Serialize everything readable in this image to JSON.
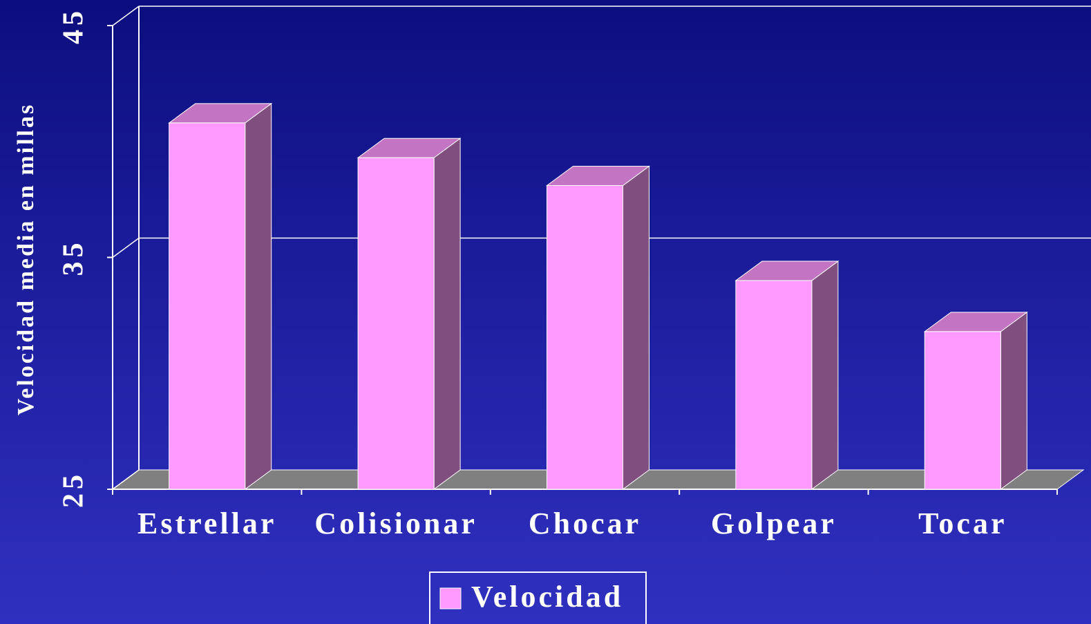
{
  "chart_data": {
    "type": "bar3d",
    "y_label": "Velocidad media en millas",
    "categories": [
      "Estrellar",
      "Colisionar",
      "Chocar",
      "Golpear",
      "Tocar"
    ],
    "series": [
      {
        "name": "Velocidad",
        "color": "#ff99ff",
        "values": [
          40.8,
          39.3,
          38.1,
          34.0,
          31.8
        ]
      }
    ],
    "ylim": [
      25,
      45
    ],
    "yticks": [
      25,
      35,
      45
    ],
    "grid": true
  }
}
